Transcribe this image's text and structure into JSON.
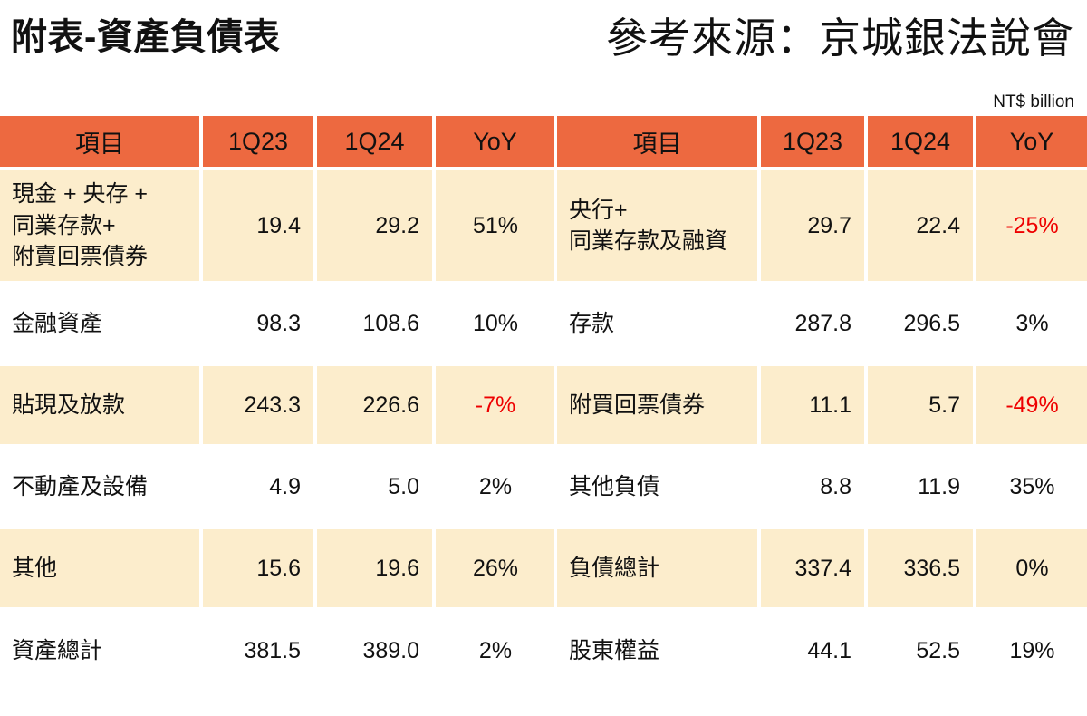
{
  "page": {
    "title": "附表-資產負債表",
    "source": "參考來源：京城銀法說會",
    "unit_note": "NT$ billion"
  },
  "colors": {
    "header_bg": "#ED6940",
    "row_alt_bg": "#FCEDCC",
    "negative": "#EE0000"
  },
  "chart_data": [
    {
      "type": "table",
      "title": "附表-資產負債表",
      "unit": "NT$ billion",
      "columns": [
        "項目",
        "1Q23",
        "1Q24",
        "YoY"
      ],
      "rows": [
        {
          "label": "現金 + 央存 +\n同業存款+\n附賣回票債券",
          "q1_2023": "19.4",
          "q1_2024": "29.2",
          "yoy": "51%"
        },
        {
          "label": "金融資產",
          "q1_2023": "98.3",
          "q1_2024": "108.6",
          "yoy": "10%"
        },
        {
          "label": "貼現及放款",
          "q1_2023": "243.3",
          "q1_2024": "226.6",
          "yoy": "-7%"
        },
        {
          "label": "不動產及設備",
          "q1_2023": "4.9",
          "q1_2024": "5.0",
          "yoy": "2%"
        },
        {
          "label": "其他",
          "q1_2023": "15.6",
          "q1_2024": "19.6",
          "yoy": "26%"
        },
        {
          "label": "資產總計",
          "q1_2023": "381.5",
          "q1_2024": "389.0",
          "yoy": "2%"
        }
      ]
    },
    {
      "type": "table",
      "title": "附表-資產負債表",
      "unit": "NT$ billion",
      "columns": [
        "項目",
        "1Q23",
        "1Q24",
        "YoY"
      ],
      "rows": [
        {
          "label": "央行+\n同業存款及融資",
          "q1_2023": "29.7",
          "q1_2024": "22.4",
          "yoy": "-25%"
        },
        {
          "label": "存款",
          "q1_2023": "287.8",
          "q1_2024": "296.5",
          "yoy": "3%"
        },
        {
          "label": "附買回票債券",
          "q1_2023": "11.1",
          "q1_2024": "5.7",
          "yoy": "-49%"
        },
        {
          "label": "其他負債",
          "q1_2023": "8.8",
          "q1_2024": "11.9",
          "yoy": "35%"
        },
        {
          "label": "負債總計",
          "q1_2023": "337.4",
          "q1_2024": "336.5",
          "yoy": "0%"
        },
        {
          "label": "股東權益",
          "q1_2023": "44.1",
          "q1_2024": "52.5",
          "yoy": "19%"
        }
      ]
    }
  ]
}
